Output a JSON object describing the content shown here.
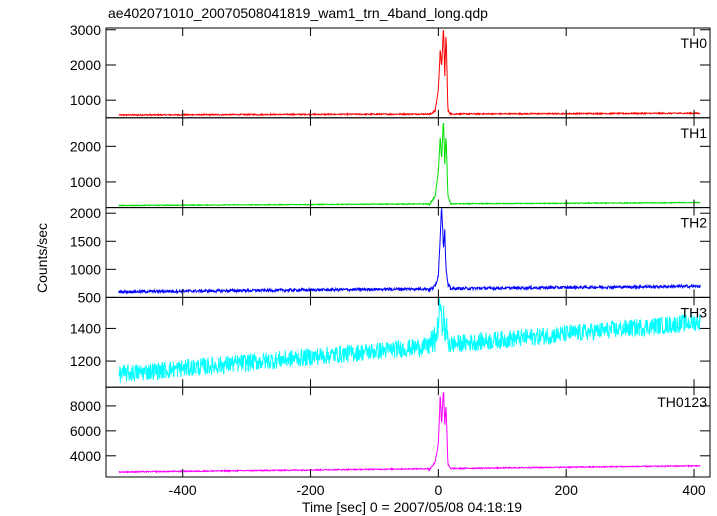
{
  "chart_data": {
    "type": "line",
    "title": "ae402071010_20070508041819_wam1_trn_4band_long.qdp",
    "xlabel": "Time [sec] 0 = 2007/05/08 04:18:19",
    "ylabel": "Counts/sec",
    "xlim": [
      -520,
      425
    ],
    "x_ticks": [
      -400,
      -200,
      0,
      200,
      400
    ],
    "panels": [
      {
        "name": "TH0",
        "color": "#ff0000",
        "ylim": [
          500,
          3050
        ],
        "y_ticks": [
          1000,
          2000,
          3000
        ],
        "base_start": 580,
        "base_end": 630,
        "noise": 18,
        "burst": [
          [
            -15,
            580
          ],
          [
            -5,
            700
          ],
          [
            0,
            1300
          ],
          [
            3,
            2500
          ],
          [
            5,
            1900
          ],
          [
            8,
            3100
          ],
          [
            10,
            1700
          ],
          [
            12,
            2900
          ],
          [
            15,
            700
          ],
          [
            20,
            600
          ]
        ]
      },
      {
        "name": "TH1",
        "color": "#00e000",
        "ylim": [
          280,
          2800
        ],
        "y_ticks": [
          1000,
          2000
        ],
        "base_start": 340,
        "base_end": 420,
        "noise": 12,
        "burst": [
          [
            -15,
            340
          ],
          [
            -5,
            600
          ],
          [
            0,
            1300
          ],
          [
            3,
            2300
          ],
          [
            5,
            1600
          ],
          [
            8,
            2800
          ],
          [
            10,
            1500
          ],
          [
            12,
            2300
          ],
          [
            15,
            600
          ],
          [
            20,
            360
          ]
        ]
      },
      {
        "name": "TH2",
        "color": "#0000ff",
        "ylim": [
          500,
          2100
        ],
        "y_ticks": [
          500,
          1000,
          1500,
          2000
        ],
        "base_start": 600,
        "base_end": 700,
        "noise": 25,
        "burst": [
          [
            -15,
            620
          ],
          [
            -5,
            700
          ],
          [
            0,
            900
          ],
          [
            3,
            1600
          ],
          [
            5,
            2150
          ],
          [
            8,
            1400
          ],
          [
            10,
            1700
          ],
          [
            12,
            1000
          ],
          [
            15,
            720
          ],
          [
            20,
            640
          ]
        ]
      },
      {
        "name": "TH3",
        "color": "#00ffff",
        "ylim": [
          1040,
          1590
        ],
        "y_ticks": [
          1200,
          1400
        ],
        "base_start": 1120,
        "base_end": 1440,
        "noise": 55,
        "burst": [
          [
            -15,
            1300
          ],
          [
            -5,
            1330
          ],
          [
            0,
            1420
          ],
          [
            3,
            1580
          ],
          [
            5,
            1400
          ],
          [
            8,
            1480
          ],
          [
            10,
            1360
          ],
          [
            12,
            1420
          ],
          [
            15,
            1320
          ],
          [
            20,
            1310
          ]
        ]
      },
      {
        "name": "TH0123",
        "color": "#ff00ff",
        "ylim": [
          2300,
          9500
        ],
        "y_ticks": [
          4000,
          6000,
          8000
        ],
        "base_start": 2700,
        "base_end": 3200,
        "noise": 45,
        "burst": [
          [
            -15,
            2800
          ],
          [
            -5,
            3500
          ],
          [
            0,
            5000
          ],
          [
            3,
            9000
          ],
          [
            5,
            6500
          ],
          [
            8,
            9400
          ],
          [
            10,
            6500
          ],
          [
            12,
            8000
          ],
          [
            15,
            3300
          ],
          [
            20,
            2900
          ]
        ]
      }
    ]
  }
}
